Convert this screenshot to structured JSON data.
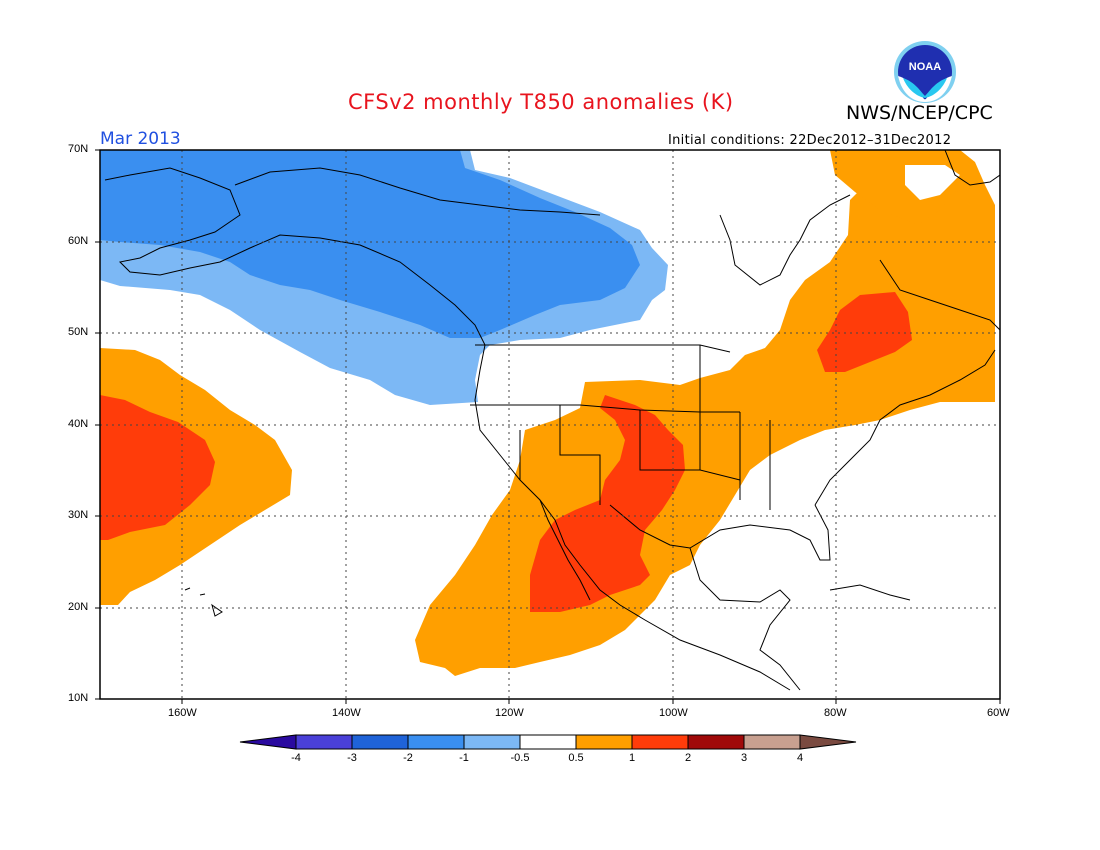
{
  "header": {
    "title": "CFSv2 monthly T850 anomalies (K)",
    "org": "NWS/NCEP/CPC",
    "logo_text": "NOAA",
    "month": "Mar 2013",
    "initial_conditions": "Initial conditions: 22Dec2012–31Dec2012"
  },
  "map": {
    "lat_labels": [
      "70N",
      "60N",
      "50N",
      "40N",
      "30N",
      "20N",
      "10N"
    ],
    "lon_labels": [
      "160W",
      "140W",
      "120W",
      "100W",
      "80W",
      "60W"
    ],
    "grid": true,
    "domain": {
      "lon": [
        "170W",
        "60W"
      ],
      "lat": [
        "10N",
        "70N"
      ]
    }
  },
  "colorbar": {
    "labels": [
      "-4",
      "-3",
      "-2",
      "-1",
      "-0.5",
      "0.5",
      "1",
      "2",
      "3",
      "4"
    ],
    "colors": [
      "#2a0aa0",
      "#4a40d8",
      "#1f63d8",
      "#3a8ff0",
      "#7cb8f5",
      "#ffffff",
      "#ff9f00",
      "#ff3c0a",
      "#a00a0a",
      "#c8a090",
      "#7a4a40"
    ]
  },
  "colors": {
    "strong_negative": "#3a8ff0",
    "weak_negative": "#7cb8f5",
    "weak_positive": "#ff9f00",
    "strong_positive": "#ff3c0a",
    "title": "#e8141e",
    "month": "#2050e0"
  }
}
